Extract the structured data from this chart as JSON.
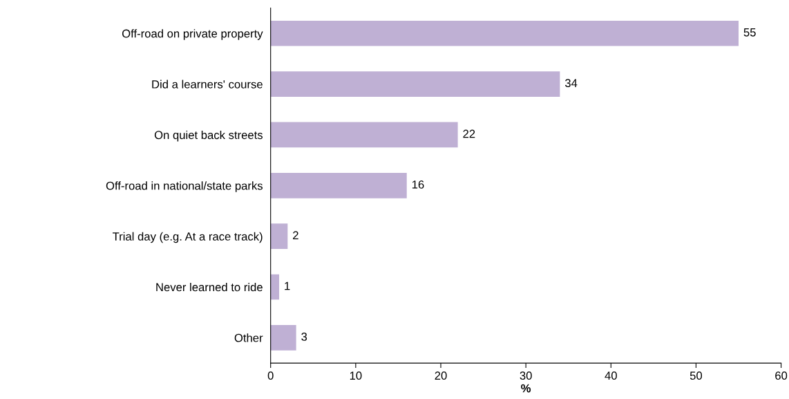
{
  "chart_data": {
    "type": "bar",
    "orientation": "horizontal",
    "xlabel": "%",
    "categories": [
      "Off-road on private property",
      "Did a learners' course",
      "On quiet back streets",
      "Off-road in national/state parks",
      "Trial day (e.g. At a race track)",
      "Never learned to ride",
      "Other"
    ],
    "values": [
      55,
      34,
      22,
      16,
      2,
      1,
      3
    ],
    "color": "#bfb0d4",
    "xlim": [
      0,
      60
    ],
    "xticks": [
      0,
      10,
      20,
      30,
      40,
      50,
      60
    ],
    "grid": false,
    "data_labels": true
  }
}
